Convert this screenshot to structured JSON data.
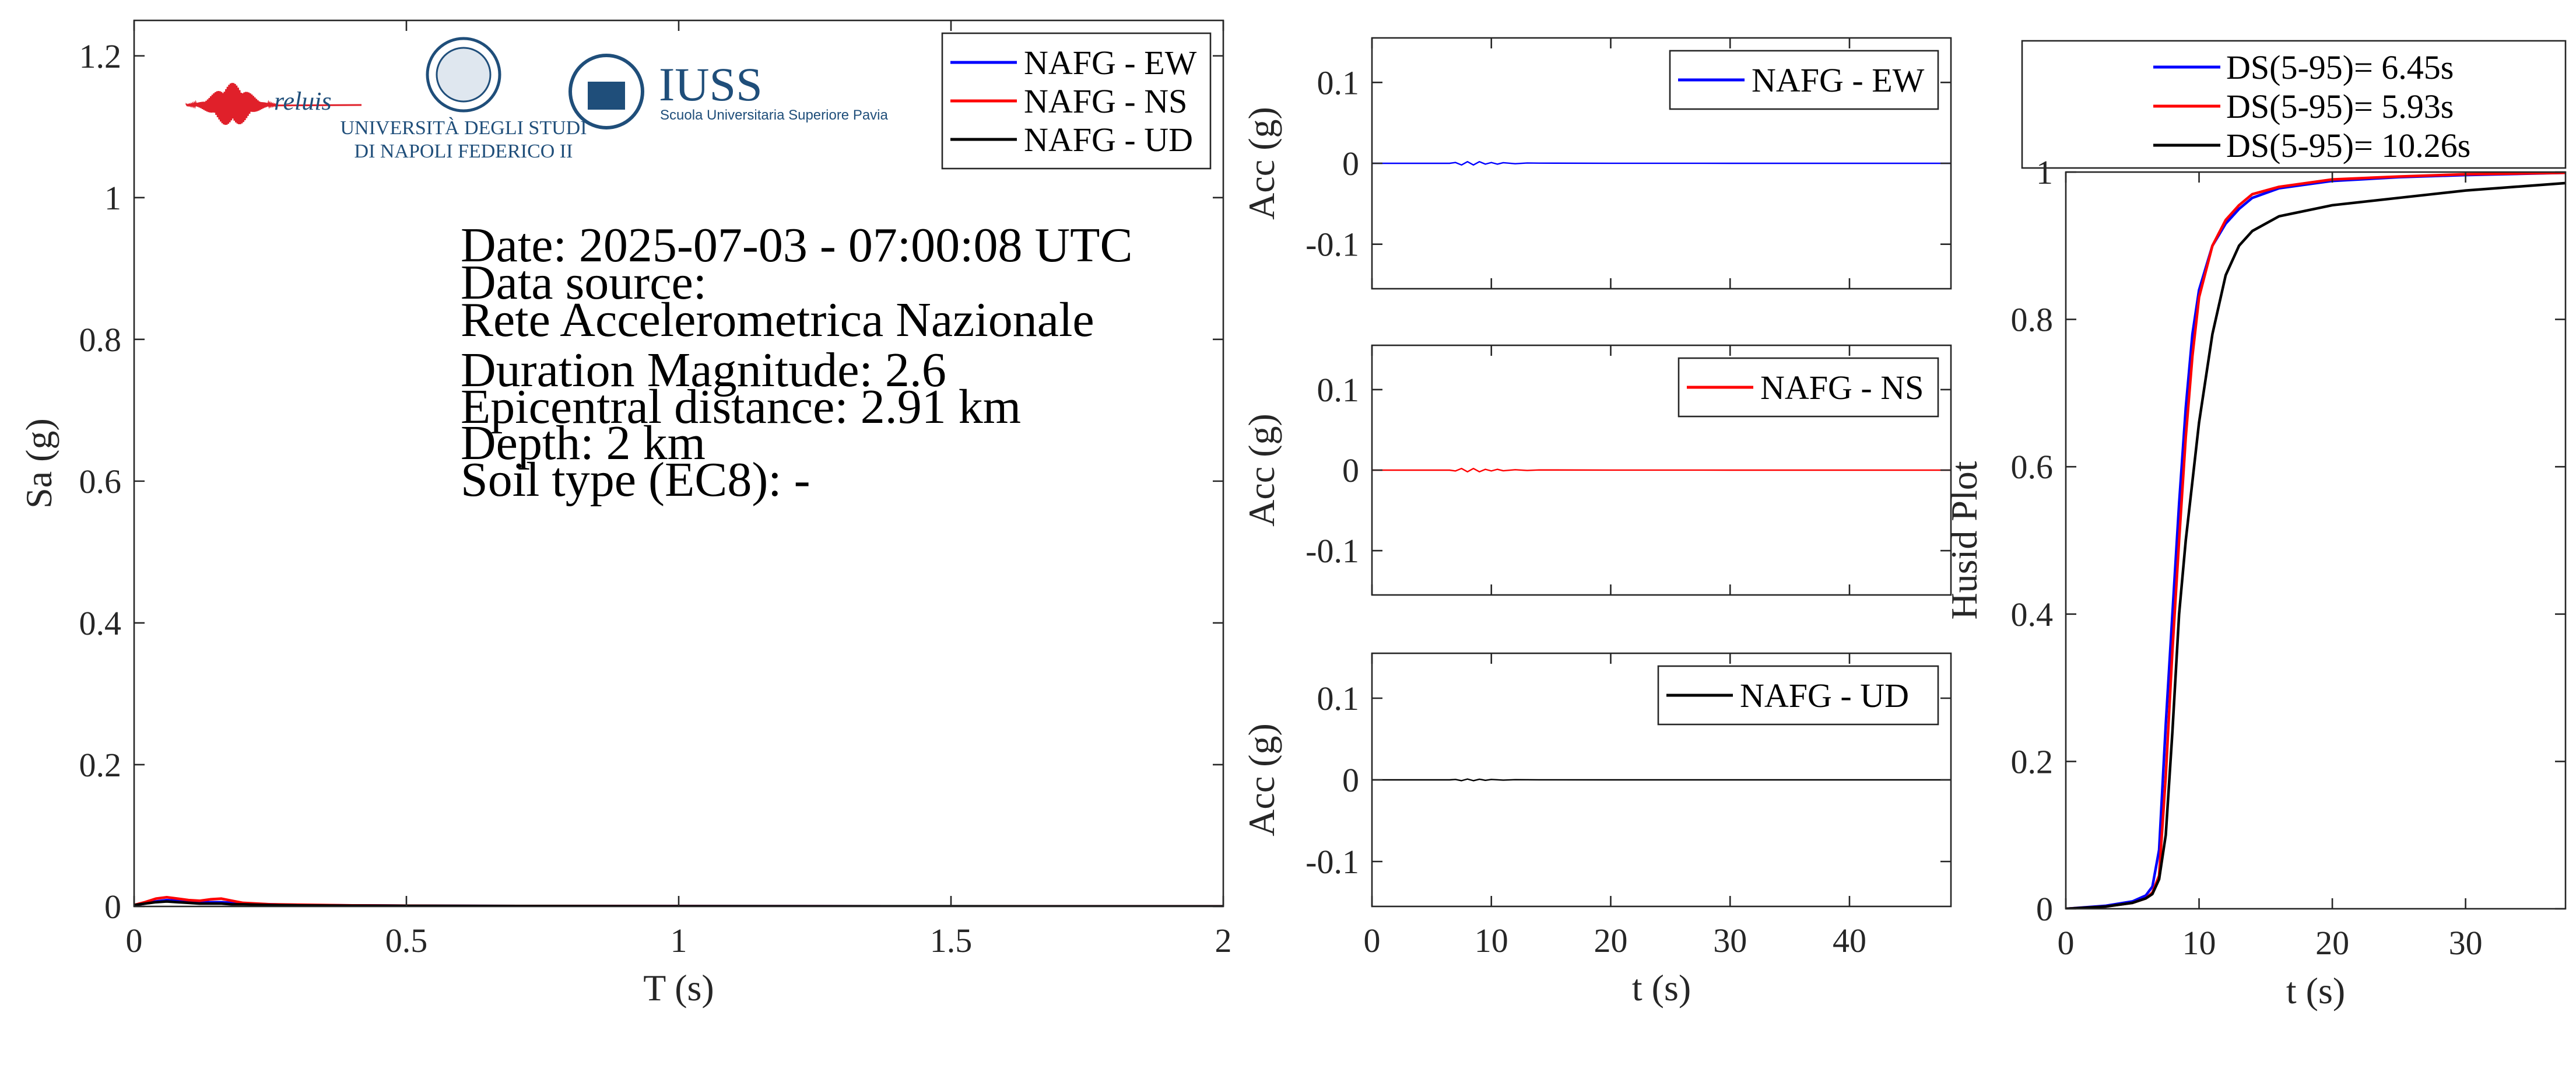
{
  "colors": {
    "EW": "#0000ff",
    "NS": "#ff0000",
    "UD": "#000000",
    "iuss": "#1f4e7a",
    "reluis_wave": "#e0202a"
  },
  "logos": {
    "reluis": "reluis",
    "unina_line1": "UNIVERSITÀ DEGLI STUDI",
    "unina_line2": "DI NAPOLI FEDERICO II",
    "iuss_title": "IUSS",
    "iuss_sub": "Scuola Universitaria Superiore Pavia"
  },
  "info": {
    "date": "Date: 2025-07-03 - 07:00:08 UTC",
    "source_label": "Data source:",
    "source": "Rete Accelerometrica Nazionale",
    "magnitude": "Duration Magnitude: 2.6",
    "distance": "Epicentral distance: 2.91 km",
    "depth": "Depth: 2 km",
    "soil": "Soil type (EC8): -"
  },
  "chart_data": [
    {
      "type": "line",
      "panel": "spectrum",
      "xlabel": "T (s)",
      "ylabel": "Sa (g)",
      "xlim": [
        0,
        2
      ],
      "ylim": [
        0,
        1.25
      ],
      "xticks": [
        0,
        0.5,
        1,
        1.5,
        2
      ],
      "xtick_labels": [
        "0",
        "0.5",
        "1",
        "1.5",
        "2"
      ],
      "yticks": [
        0,
        0.2,
        0.4,
        0.6,
        0.8,
        1,
        1.2
      ],
      "ytick_labels": [
        "0",
        "0.2",
        "0.4",
        "0.6",
        "0.8",
        "1",
        "1.2"
      ],
      "legend": [
        "NAFG - EW",
        "NAFG - NS",
        "NAFG - UD"
      ],
      "legend_position": "top-right",
      "series": [
        {
          "name": "NAFG - EW",
          "color": "#0000ff",
          "x": [
            0,
            0.02,
            0.04,
            0.06,
            0.08,
            0.1,
            0.12,
            0.14,
            0.16,
            0.18,
            0.2,
            0.25,
            0.3,
            0.4,
            0.5,
            0.75,
            1,
            1.5,
            2
          ],
          "y": [
            0.002,
            0.004,
            0.007,
            0.009,
            0.008,
            0.007,
            0.006,
            0.006,
            0.006,
            0.005,
            0.004,
            0.003,
            0.002,
            0.0015,
            0.001,
            0.0006,
            0.0004,
            0.0002,
            0.0001
          ]
        },
        {
          "name": "NAFG - NS",
          "color": "#ff0000",
          "x": [
            0,
            0.02,
            0.04,
            0.06,
            0.08,
            0.1,
            0.12,
            0.14,
            0.16,
            0.18,
            0.2,
            0.25,
            0.3,
            0.4,
            0.5,
            0.75,
            1,
            1.5,
            2
          ],
          "y": [
            0.002,
            0.006,
            0.011,
            0.013,
            0.011,
            0.009,
            0.008,
            0.01,
            0.011,
            0.008,
            0.005,
            0.003,
            0.0025,
            0.0015,
            0.001,
            0.0006,
            0.0004,
            0.0002,
            0.0001
          ]
        },
        {
          "name": "NAFG - UD",
          "color": "#000000",
          "x": [
            0,
            0.02,
            0.04,
            0.06,
            0.08,
            0.1,
            0.12,
            0.14,
            0.16,
            0.18,
            0.2,
            0.25,
            0.3,
            0.4,
            0.5,
            0.75,
            1,
            1.5,
            2
          ],
          "y": [
            0.002,
            0.004,
            0.006,
            0.007,
            0.006,
            0.005,
            0.004,
            0.004,
            0.004,
            0.003,
            0.003,
            0.002,
            0.0015,
            0.001,
            0.0008,
            0.0005,
            0.0003,
            0.0002,
            0.0001
          ]
        }
      ]
    },
    {
      "type": "line",
      "panel": "accelerogram-EW",
      "xlabel": "",
      "ylabel": "Acc (g)",
      "xlim": [
        0,
        48.5
      ],
      "ylim": [
        -0.155,
        0.155
      ],
      "yticks": [
        -0.1,
        0,
        0.1
      ],
      "ytick_labels": [
        "-0.1",
        "0",
        "0.1"
      ],
      "legend": [
        "NAFG - EW"
      ],
      "legend_position": "top-right",
      "series": [
        {
          "name": "NAFG - EW",
          "color": "#0000ff",
          "x": [
            0,
            6.5,
            7,
            7.5,
            8,
            8.5,
            9,
            9.5,
            10,
            10.5,
            11,
            12,
            13,
            14,
            20,
            30,
            40,
            48.5
          ],
          "y": [
            0,
            0,
            0.001,
            -0.002,
            0.002,
            -0.002,
            0.002,
            -0.001,
            0.001,
            -0.001,
            0.0008,
            -0.0005,
            0.0004,
            0.0002,
            0.0001,
            0,
            0,
            0
          ]
        }
      ]
    },
    {
      "type": "line",
      "panel": "accelerogram-NS",
      "xlabel": "",
      "ylabel": "Acc (g)",
      "xlim": [
        0,
        48.5
      ],
      "ylim": [
        -0.155,
        0.155
      ],
      "yticks": [
        -0.1,
        0,
        0.1
      ],
      "ytick_labels": [
        "-0.1",
        "0",
        "0.1"
      ],
      "legend": [
        "NAFG - NS"
      ],
      "legend_position": "top-right",
      "series": [
        {
          "name": "NAFG - NS",
          "color": "#ff0000",
          "x": [
            0,
            6.5,
            7,
            7.5,
            8,
            8.5,
            9,
            9.5,
            10,
            10.5,
            11,
            12,
            13,
            14,
            20,
            30,
            40,
            48.5
          ],
          "y": [
            0,
            0,
            -0.001,
            0.002,
            -0.002,
            0.002,
            -0.002,
            0.001,
            -0.001,
            0.001,
            -0.0008,
            0.0005,
            -0.0004,
            0.0002,
            0.0001,
            0,
            0,
            0
          ]
        }
      ]
    },
    {
      "type": "line",
      "panel": "accelerogram-UD",
      "xlabel": "t (s)",
      "ylabel": "Acc (g)",
      "xlim": [
        0,
        48.5
      ],
      "ylim": [
        -0.155,
        0.155
      ],
      "xticks": [
        0,
        10,
        20,
        30,
        40
      ],
      "xtick_labels": [
        "0",
        "10",
        "20",
        "30",
        "40"
      ],
      "yticks": [
        -0.1,
        0,
        0.1
      ],
      "ytick_labels": [
        "-0.1",
        "0",
        "0.1"
      ],
      "legend": [
        "NAFG - UD"
      ],
      "legend_position": "top-right",
      "series": [
        {
          "name": "NAFG - UD",
          "color": "#000000",
          "x": [
            0,
            6.5,
            7,
            7.5,
            8,
            8.5,
            9,
            9.5,
            10,
            11,
            12,
            14,
            20,
            30,
            40,
            48.5
          ],
          "y": [
            0,
            0,
            0.0005,
            -0.001,
            0.001,
            -0.001,
            0.0008,
            -0.0006,
            0.0005,
            -0.0003,
            0.0002,
            0.0001,
            0,
            0,
            0,
            0
          ]
        }
      ]
    },
    {
      "type": "line",
      "panel": "husid",
      "xlabel": "t (s)",
      "ylabel": "Husid Plot",
      "xlim": [
        0,
        37.5
      ],
      "ylim": [
        0,
        1
      ],
      "xticks": [
        0,
        10,
        20,
        30
      ],
      "xtick_labels": [
        "0",
        "10",
        "20",
        "30"
      ],
      "yticks": [
        0,
        0.2,
        0.4,
        0.6,
        0.8,
        1
      ],
      "ytick_labels": [
        "0",
        "0.2",
        "0.4",
        "0.6",
        "0.8",
        "1"
      ],
      "legend": [
        "DS(5-95)= 6.45s",
        "DS(5-95)= 5.93s",
        "DS(5-95)= 10.26s"
      ],
      "legend_position": "top (outside)",
      "series": [
        {
          "name": "DS(5-95)= 6.45s",
          "color": "#0000ff",
          "x": [
            0,
            3,
            5,
            6,
            6.5,
            7,
            7.5,
            8,
            8.5,
            9,
            9.5,
            10,
            11,
            12,
            13,
            14,
            16,
            20,
            25,
            30,
            37.5
          ],
          "y": [
            0,
            0.004,
            0.01,
            0.018,
            0.03,
            0.08,
            0.25,
            0.4,
            0.55,
            0.68,
            0.78,
            0.84,
            0.9,
            0.93,
            0.95,
            0.965,
            0.978,
            0.988,
            0.993,
            0.996,
            0.999
          ]
        },
        {
          "name": "DS(5-95)= 5.93s",
          "color": "#ff0000",
          "x": [
            0,
            3,
            5,
            6,
            6.5,
            7,
            7.5,
            8,
            8.5,
            9,
            9.5,
            10,
            11,
            12,
            13,
            14,
            16,
            20,
            25,
            30,
            37.5
          ],
          "y": [
            0,
            0.003,
            0.008,
            0.014,
            0.022,
            0.045,
            0.18,
            0.35,
            0.5,
            0.64,
            0.75,
            0.83,
            0.9,
            0.935,
            0.955,
            0.97,
            0.98,
            0.99,
            0.994,
            0.997,
            0.999
          ]
        },
        {
          "name": "DS(5-95)= 10.26s",
          "color": "#000000",
          "x": [
            0,
            3,
            5,
            6,
            6.5,
            7,
            7.5,
            8,
            8.5,
            9,
            9.5,
            10,
            11,
            12,
            13,
            14,
            16,
            20,
            25,
            30,
            37.5
          ],
          "y": [
            0,
            0.003,
            0.008,
            0.014,
            0.02,
            0.04,
            0.1,
            0.24,
            0.4,
            0.5,
            0.58,
            0.66,
            0.78,
            0.86,
            0.9,
            0.92,
            0.94,
            0.955,
            0.965,
            0.975,
            0.985
          ]
        }
      ]
    }
  ]
}
